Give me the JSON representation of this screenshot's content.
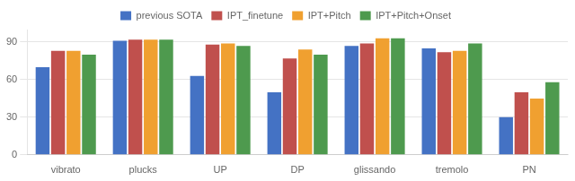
{
  "chart_data": {
    "type": "bar",
    "categories": [
      "vibrato",
      "plucks",
      "UP",
      "DP",
      "glissando",
      "tremolo",
      "PN"
    ],
    "series": [
      {
        "name": "previous SOTA",
        "color": "#4472C4",
        "values": [
          70,
          91,
          63,
          50,
          87,
          85,
          30
        ]
      },
      {
        "name": "IPT_finetune",
        "color": "#C0504D",
        "values": [
          83,
          92,
          88,
          77,
          89,
          82,
          50
        ]
      },
      {
        "name": "IPT+Pitch",
        "color": "#F0A030",
        "values": [
          83,
          92,
          89,
          84,
          93,
          83,
          45
        ]
      },
      {
        "name": "IPT+Pitch+Onset",
        "color": "#4E9A4E",
        "values": [
          80,
          92,
          87,
          80,
          93,
          89,
          58
        ]
      }
    ],
    "ylim": [
      0,
      100
    ],
    "yticks": [
      0,
      30,
      60,
      90
    ],
    "grid": true,
    "legend": "top"
  }
}
